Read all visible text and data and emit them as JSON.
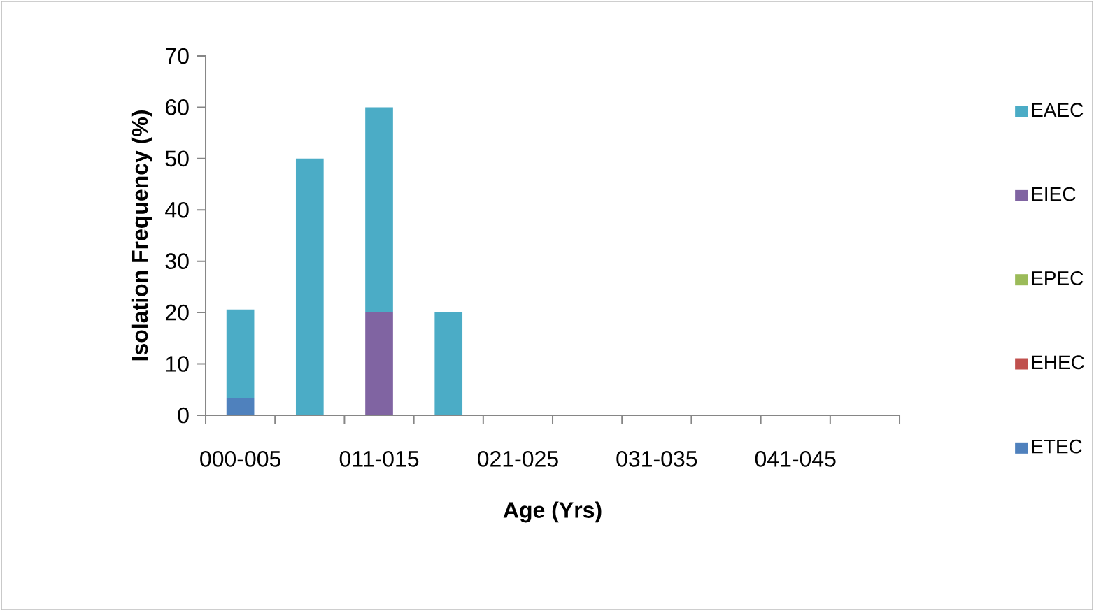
{
  "chart_data": {
    "type": "bar",
    "stacked": true,
    "xlabel": "Age (Yrs)",
    "ylabel": "Isolation Frequency (%)",
    "categories": [
      "000-005",
      null,
      "011-015",
      null,
      "021-025",
      null,
      "031-035",
      null,
      "041-045",
      null
    ],
    "series": [
      {
        "name": "ETEC",
        "color": "#4f81bd",
        "values": [
          3.3,
          0,
          0,
          0,
          0,
          0,
          0,
          0,
          0,
          0
        ]
      },
      {
        "name": "EHEC",
        "color": "#c0504d",
        "values": [
          0,
          0,
          0,
          0,
          0,
          0,
          0,
          0,
          0,
          0
        ]
      },
      {
        "name": "EPEC",
        "color": "#9bbb59",
        "values": [
          0,
          0,
          0,
          0,
          0,
          0,
          0,
          0,
          0,
          0
        ]
      },
      {
        "name": "EIEC",
        "color": "#8064a2",
        "values": [
          0,
          0,
          20,
          0,
          0,
          0,
          0,
          0,
          0,
          0
        ]
      },
      {
        "name": "EAEC",
        "color": "#4bacc6",
        "values": [
          17.3,
          50,
          40,
          20,
          0,
          0,
          0,
          0,
          0,
          0
        ]
      }
    ],
    "ylim": [
      0,
      70
    ],
    "yticks": [
      0,
      10,
      20,
      30,
      40,
      50,
      60,
      70
    ],
    "grid": false,
    "legend": "right"
  }
}
